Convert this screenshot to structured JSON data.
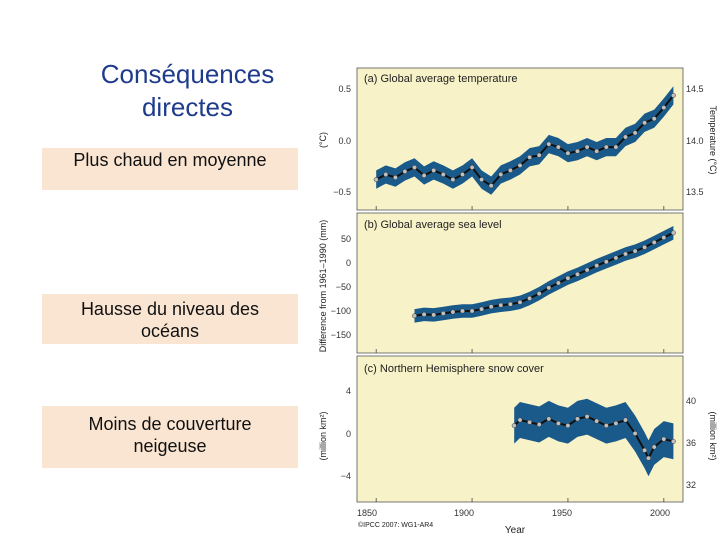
{
  "slide": {
    "title_line1": "Conséquences",
    "title_line2": "directes",
    "box1": "Plus chaud en moyenne",
    "box2_line1": "Hausse du niveau des",
    "box2_line2": "océans",
    "box3_line1": "Moins de couverture",
    "box3_line2": "neigeuse"
  },
  "colors": {
    "title": "#1f3c8c",
    "box_bg": "#fae5d2",
    "panel_bg": "#f7f2c8",
    "band": "#1a5a8a",
    "line": "#111111",
    "point_fill": "#bfbfbf"
  },
  "figure": {
    "xlabel": "Year",
    "credit": "©IPCC 2007: WG1-AR4",
    "x_ticks": [
      "1850",
      "1900",
      "1950",
      "2000"
    ]
  },
  "chart_data": [
    {
      "type": "line",
      "title": "(a) Global average temperature",
      "ylabel": "(°C)",
      "ylabel_right": "Temperature (°C)",
      "y_ticks": [
        "0.5",
        "0.0",
        "−0.5"
      ],
      "y_ticks_right": [
        "14.5",
        "14.0",
        "13.5"
      ],
      "xlim": [
        1840,
        2010
      ],
      "ylim": [
        -0.68,
        0.72
      ],
      "x": [
        1850,
        1855,
        1860,
        1865,
        1870,
        1875,
        1880,
        1885,
        1890,
        1895,
        1900,
        1905,
        1910,
        1915,
        1920,
        1925,
        1930,
        1935,
        1940,
        1945,
        1950,
        1955,
        1960,
        1965,
        1970,
        1975,
        1980,
        1985,
        1990,
        1995,
        2000,
        2005
      ],
      "values": [
        -0.38,
        -0.33,
        -0.36,
        -0.3,
        -0.26,
        -0.34,
        -0.29,
        -0.33,
        -0.38,
        -0.33,
        -0.26,
        -0.38,
        -0.44,
        -0.33,
        -0.29,
        -0.24,
        -0.16,
        -0.14,
        -0.03,
        -0.06,
        -0.12,
        -0.1,
        -0.06,
        -0.1,
        -0.06,
        -0.06,
        0.04,
        0.08,
        0.18,
        0.22,
        0.33,
        0.45
      ],
      "band_halfwidth": 0.09
    },
    {
      "type": "line",
      "title": "(b) Global average sea level",
      "ylabel": "Difference from 1961–1990 (mm)",
      "y_ticks": [
        "50",
        "0",
        "−50",
        "−100",
        "−150"
      ],
      "xlim": [
        1840,
        2010
      ],
      "ylim": [
        -197,
        93
      ],
      "x": [
        1870,
        1875,
        1880,
        1885,
        1890,
        1895,
        1900,
        1905,
        1910,
        1915,
        1920,
        1925,
        1930,
        1935,
        1940,
        1945,
        1950,
        1955,
        1960,
        1965,
        1970,
        1975,
        1980,
        1985,
        1990,
        1995,
        2000,
        2005
      ],
      "values": [
        -120,
        -117,
        -118,
        -115,
        -112,
        -110,
        -110,
        -106,
        -101,
        -98,
        -96,
        -92,
        -84,
        -74,
        -62,
        -52,
        -42,
        -34,
        -25,
        -16,
        -8,
        0,
        8,
        14,
        22,
        32,
        42,
        52
      ],
      "band_halfwidth": 14
    },
    {
      "type": "line",
      "title": "(c) Northern Hemisphere snow cover",
      "ylabel": "(million km²)",
      "ylabel_right": "(million km²)",
      "y_ticks": [
        "4",
        "0",
        "−4"
      ],
      "y_ticks_right": [
        "40",
        "36",
        "32"
      ],
      "xlim": [
        1840,
        2010
      ],
      "ylim": [
        -6.5,
        6.5
      ],
      "x": [
        1922,
        1925,
        1930,
        1935,
        1940,
        1945,
        1950,
        1955,
        1960,
        1965,
        1970,
        1975,
        1980,
        1985,
        1990,
        1992,
        1995,
        2000,
        2005
      ],
      "values": [
        0.3,
        0.8,
        0.6,
        0.4,
        0.9,
        0.5,
        0.3,
        0.9,
        1.1,
        0.7,
        0.3,
        0.5,
        0.8,
        -0.4,
        -1.9,
        -2.6,
        -1.6,
        -0.9,
        -1.1
      ],
      "band_halfwidth": 1.6
    }
  ]
}
